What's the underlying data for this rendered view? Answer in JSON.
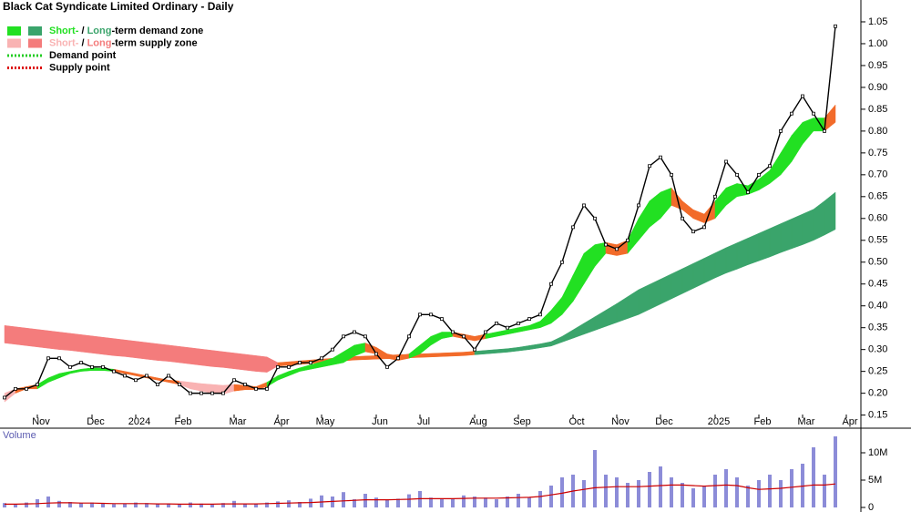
{
  "chart_data": {
    "type": "stock",
    "title": "Black Cat Syndicate Limited Ordinary - Daily",
    "categories": [
      null,
      null,
      null,
      "Nov",
      null,
      null,
      null,
      null,
      "Dec",
      null,
      null,
      null,
      "2024",
      null,
      null,
      null,
      "Feb",
      null,
      null,
      null,
      null,
      "Mar",
      null,
      null,
      null,
      "Apr",
      null,
      null,
      null,
      "May",
      null,
      null,
      null,
      null,
      "Jun",
      null,
      null,
      null,
      "Jul",
      null,
      null,
      null,
      null,
      "Aug",
      null,
      null,
      null,
      "Sep",
      null,
      null,
      null,
      null,
      "Oct",
      null,
      null,
      null,
      "Nov",
      null,
      null,
      null,
      "Dec",
      null,
      null,
      null,
      null,
      "2025",
      null,
      null,
      null,
      "Feb",
      null,
      null,
      null,
      "Mar",
      null,
      null,
      null,
      "Apr"
    ],
    "price": {
      "color": "#000000",
      "values": [
        0.19,
        0.21,
        0.21,
        0.22,
        0.28,
        0.28,
        0.26,
        0.27,
        0.26,
        0.26,
        0.25,
        0.24,
        0.23,
        0.24,
        0.22,
        0.24,
        0.22,
        0.2,
        0.2,
        0.2,
        0.2,
        0.23,
        0.22,
        0.21,
        0.21,
        0.26,
        0.26,
        0.27,
        0.27,
        0.28,
        0.3,
        0.33,
        0.34,
        0.33,
        0.29,
        0.26,
        0.28,
        0.33,
        0.38,
        0.38,
        0.37,
        0.34,
        0.33,
        0.3,
        0.34,
        0.36,
        0.35,
        0.36,
        0.37,
        0.38,
        0.45,
        0.5,
        0.58,
        0.63,
        0.6,
        0.54,
        0.53,
        0.55,
        0.63,
        0.72,
        0.74,
        0.7,
        0.6,
        0.57,
        0.58,
        0.65,
        0.73,
        0.7,
        0.66,
        0.7,
        0.72,
        0.8,
        0.84,
        0.88,
        0.84,
        0.8,
        1.04,
        null
      ]
    },
    "long_zone": {
      "upper": [
        0.355,
        0.352,
        0.349,
        0.346,
        0.343,
        0.34,
        0.337,
        0.334,
        0.331,
        0.328,
        0.325,
        0.322,
        0.319,
        0.316,
        0.313,
        0.31,
        0.307,
        0.304,
        0.301,
        0.298,
        0.295,
        0.292,
        0.289,
        0.286,
        0.283,
        0.27,
        0.272,
        0.274,
        0.276,
        0.278,
        0.28,
        0.282,
        0.284,
        0.285,
        0.286,
        0.287,
        0.288,
        0.289,
        0.29,
        0.291,
        0.292,
        0.293,
        0.294,
        0.296,
        0.298,
        0.3,
        0.302,
        0.305,
        0.309,
        0.313,
        0.318,
        0.33,
        0.345,
        0.36,
        0.375,
        0.39,
        0.405,
        0.421,
        0.437,
        0.449,
        0.461,
        0.473,
        0.485,
        0.497,
        0.509,
        0.521,
        0.533,
        0.544,
        0.555,
        0.566,
        0.577,
        0.588,
        0.599,
        0.61,
        0.621,
        0.64,
        0.66,
        null
      ],
      "lower": [
        0.315,
        0.312,
        0.309,
        0.306,
        0.303,
        0.3,
        0.298,
        0.295,
        0.292,
        0.289,
        0.286,
        0.284,
        0.281,
        0.278,
        0.275,
        0.273,
        0.27,
        0.267,
        0.264,
        0.261,
        0.259,
        0.256,
        0.253,
        0.25,
        0.248,
        0.262,
        0.264,
        0.266,
        0.268,
        0.27,
        0.272,
        0.274,
        0.276,
        0.277,
        0.278,
        0.279,
        0.28,
        0.281,
        0.282,
        0.283,
        0.284,
        0.285,
        0.286,
        0.288,
        0.29,
        0.292,
        0.294,
        0.297,
        0.3,
        0.304,
        0.308,
        0.317,
        0.326,
        0.335,
        0.344,
        0.353,
        0.362,
        0.371,
        0.38,
        0.392,
        0.404,
        0.416,
        0.428,
        0.44,
        0.452,
        0.464,
        0.475,
        0.484,
        0.494,
        0.503,
        0.512,
        0.522,
        0.531,
        0.54,
        0.55,
        0.562,
        0.575,
        null
      ],
      "colors": [
        "#f47c7c",
        "#f47c7c",
        "#f47c7c",
        "#f47c7c",
        "#f47c7c",
        "#f47c7c",
        "#f47c7c",
        "#f47c7c",
        "#f47c7c",
        "#f47c7c",
        "#f47c7c",
        "#f47c7c",
        "#f47c7c",
        "#f47c7c",
        "#f47c7c",
        "#f47c7c",
        "#f47c7c",
        "#f47c7c",
        "#f47c7c",
        "#f47c7c",
        "#f47c7c",
        "#f47c7c",
        "#f47c7c",
        "#f47c7c",
        "#f47c7c",
        "#f26b2a",
        "#f26b2a",
        "#f26b2a",
        "#f26b2a",
        "#f26b2a",
        "#f26b2a",
        "#f26b2a",
        "#f26b2a",
        "#f26b2a",
        "#f26b2a",
        "#f26b2a",
        "#f26b2a",
        "#f26b2a",
        "#f26b2a",
        "#f26b2a",
        "#f26b2a",
        "#f26b2a",
        "#f26b2a",
        "#3aa46b",
        "#3aa46b",
        "#3aa46b",
        "#3aa46b",
        "#3aa46b",
        "#3aa46b",
        "#3aa46b",
        "#3aa46b",
        "#3aa46b",
        "#3aa46b",
        "#3aa46b",
        "#3aa46b",
        "#3aa46b",
        "#3aa46b",
        "#3aa46b",
        "#3aa46b",
        "#3aa46b",
        "#3aa46b",
        "#3aa46b",
        "#3aa46b",
        "#3aa46b",
        "#3aa46b",
        "#3aa46b",
        "#3aa46b",
        "#3aa46b",
        "#3aa46b",
        "#3aa46b",
        "#3aa46b",
        "#3aa46b",
        "#3aa46b",
        "#3aa46b",
        "#3aa46b",
        "#3aa46b",
        "#3aa46b",
        null
      ]
    },
    "short_zone": {
      "upper": [
        0.2,
        0.21,
        0.215,
        0.22,
        0.235,
        0.245,
        0.25,
        0.255,
        0.258,
        0.257,
        0.255,
        0.25,
        0.245,
        0.24,
        0.235,
        0.23,
        0.228,
        0.225,
        0.222,
        0.22,
        0.218,
        0.22,
        0.218,
        0.215,
        0.225,
        0.24,
        0.25,
        0.258,
        0.265,
        0.272,
        0.28,
        0.295,
        0.31,
        0.315,
        0.305,
        0.29,
        0.285,
        0.29,
        0.31,
        0.33,
        0.34,
        0.34,
        0.335,
        0.33,
        0.335,
        0.34,
        0.345,
        0.35,
        0.355,
        0.365,
        0.39,
        0.42,
        0.47,
        0.52,
        0.54,
        0.545,
        0.54,
        0.55,
        0.6,
        0.64,
        0.66,
        0.67,
        0.64,
        0.62,
        0.61,
        0.64,
        0.67,
        0.68,
        0.675,
        0.69,
        0.71,
        0.75,
        0.79,
        0.82,
        0.83,
        0.83,
        0.86,
        null
      ],
      "lower": [
        0.18,
        0.2,
        0.21,
        0.21,
        0.225,
        0.235,
        0.245,
        0.25,
        0.252,
        0.252,
        0.25,
        0.245,
        0.24,
        0.235,
        0.23,
        0.225,
        0.22,
        0.21,
        0.205,
        0.2,
        0.198,
        0.205,
        0.208,
        0.208,
        0.215,
        0.23,
        0.24,
        0.25,
        0.255,
        0.26,
        0.265,
        0.27,
        0.285,
        0.295,
        0.29,
        0.28,
        0.275,
        0.28,
        0.29,
        0.31,
        0.325,
        0.33,
        0.325,
        0.32,
        0.325,
        0.33,
        0.335,
        0.34,
        0.345,
        0.35,
        0.36,
        0.38,
        0.41,
        0.45,
        0.49,
        0.52,
        0.515,
        0.52,
        0.55,
        0.58,
        0.6,
        0.63,
        0.62,
        0.6,
        0.59,
        0.6,
        0.63,
        0.65,
        0.655,
        0.665,
        0.68,
        0.7,
        0.73,
        0.77,
        0.8,
        0.8,
        0.82,
        null
      ],
      "colors": [
        "#f9b3b3",
        "#f26b2a",
        "#f26b2a",
        "#22e022",
        "#22e022",
        "#22e022",
        "#22e022",
        "#22e022",
        "#22e022",
        "#22e022",
        "#f26b2a",
        "#f26b2a",
        "#f26b2a",
        "#f26b2a",
        "#f26b2a",
        "#f26b2a",
        "#f9b3b3",
        "#f9b3b3",
        "#f9b3b3",
        "#f9b3b3",
        "#f9b3b3",
        "#f26b2a",
        "#f26b2a",
        "#f26b2a",
        "#22e022",
        "#22e022",
        "#22e022",
        "#22e022",
        "#22e022",
        "#22e022",
        "#22e022",
        "#22e022",
        "#22e022",
        "#f26b2a",
        "#f26b2a",
        "#f26b2a",
        "#f26b2a",
        "#22e022",
        "#22e022",
        "#22e022",
        "#22e022",
        "#f26b2a",
        "#f26b2a",
        "#f26b2a",
        "#22e022",
        "#22e022",
        "#22e022",
        "#22e022",
        "#22e022",
        "#22e022",
        "#22e022",
        "#22e022",
        "#22e022",
        "#22e022",
        "#22e022",
        "#f26b2a",
        "#f26b2a",
        "#22e022",
        "#22e022",
        "#22e022",
        "#22e022",
        "#f26b2a",
        "#f26b2a",
        "#f26b2a",
        "#f26b2a",
        "#22e022",
        "#22e022",
        "#22e022",
        "#22e022",
        "#22e022",
        "#22e022",
        "#22e022",
        "#22e022",
        "#22e022",
        "#22e022",
        "#f26b2a",
        "#22e022",
        null
      ]
    },
    "ylim": [
      0.12,
      1.1
    ],
    "yticks": [
      0.15,
      {
        "value": 0.2,
        "label": "0.20"
      },
      0.25,
      {
        "value": 0.3,
        "label": "0.30"
      },
      0.35,
      {
        "value": 0.4,
        "label": "0.40"
      },
      0.45,
      {
        "value": 0.5,
        "label": "0.50"
      },
      0.55,
      {
        "value": 0.6,
        "label": "0.60"
      },
      0.65,
      {
        "value": 0.7,
        "label": "0.70"
      },
      0.75,
      {
        "value": 0.8,
        "label": "0.80"
      },
      0.85,
      {
        "value": 0.9,
        "label": "0.90"
      },
      0.95,
      {
        "value": 1,
        "label": "1.00"
      },
      1.05
    ],
    "legend": [
      {
        "short": "Short-",
        "sep": " / ",
        "long": "Long",
        "rest": "-term demand zone",
        "colors": [
          "#22e022",
          "#3aa46b"
        ]
      },
      {
        "short": "Short-",
        "sep": " / ",
        "long": "Long",
        "rest": "-term supply zone",
        "colors": [
          "#f9b3b3",
          "#f47c7c"
        ]
      },
      {
        "label": "Demand point",
        "color": "#22cc22"
      },
      {
        "label": "Supply point",
        "color": "#dd0000"
      }
    ],
    "volume": {
      "title": "Volume",
      "color": "#8c8cd8",
      "values": [
        800000,
        600000,
        900000,
        1500000,
        2000000,
        1200000,
        1000000,
        800000,
        900000,
        700000,
        600000,
        700000,
        900000,
        800000,
        600000,
        700000,
        500000,
        900000,
        700000,
        600000,
        800000,
        1200000,
        700000,
        600000,
        900000,
        1100000,
        1300000,
        1000000,
        1600000,
        2200000,
        2000000,
        2800000,
        1500000,
        2500000,
        1800000,
        1400000,
        1600000,
        2400000,
        3000000,
        1800000,
        1500000,
        1600000,
        2200000,
        2000000,
        1800000,
        1500000,
        2000000,
        2500000,
        1800000,
        3000000,
        4000000,
        5500000,
        6000000,
        5000000,
        10500000,
        6000000,
        5500000,
        4500000,
        5000000,
        6500000,
        7500000,
        5500000,
        4500000,
        3500000,
        4000000,
        6000000,
        7000000,
        5500000,
        4000000,
        5000000,
        6000000,
        5000000,
        7000000,
        8000000,
        11000000,
        6000000,
        13000000,
        null
      ],
      "average": {
        "color": "#cc0000",
        "values": [
          600000,
          600000,
          650000,
          700000,
          800000,
          850000,
          850000,
          800000,
          800000,
          750000,
          700000,
          700000,
          700000,
          700000,
          650000,
          650000,
          600000,
          600000,
          600000,
          600000,
          650000,
          650000,
          650000,
          650000,
          700000,
          750000,
          800000,
          850000,
          900000,
          1000000,
          1100000,
          1200000,
          1300000,
          1400000,
          1400000,
          1400000,
          1450000,
          1500000,
          1600000,
          1600000,
          1600000,
          1600000,
          1650000,
          1700000,
          1700000,
          1700000,
          1750000,
          1800000,
          1850000,
          2000000,
          2300000,
          2600000,
          3000000,
          3300000,
          3600000,
          3700000,
          3800000,
          3800000,
          3800000,
          3900000,
          4000000,
          4100000,
          4100000,
          4000000,
          3900000,
          4000000,
          4100000,
          4000000,
          3600000,
          3300000,
          3400000,
          3500000,
          3700000,
          3900000,
          4100000,
          4100000,
          4300000,
          null
        ]
      },
      "ylim": [
        0,
        14500000
      ],
      "yticks": [
        0,
        {
          "value": 5000000,
          "label": "5M"
        },
        {
          "value": 10000000,
          "label": "10M"
        }
      ]
    }
  }
}
